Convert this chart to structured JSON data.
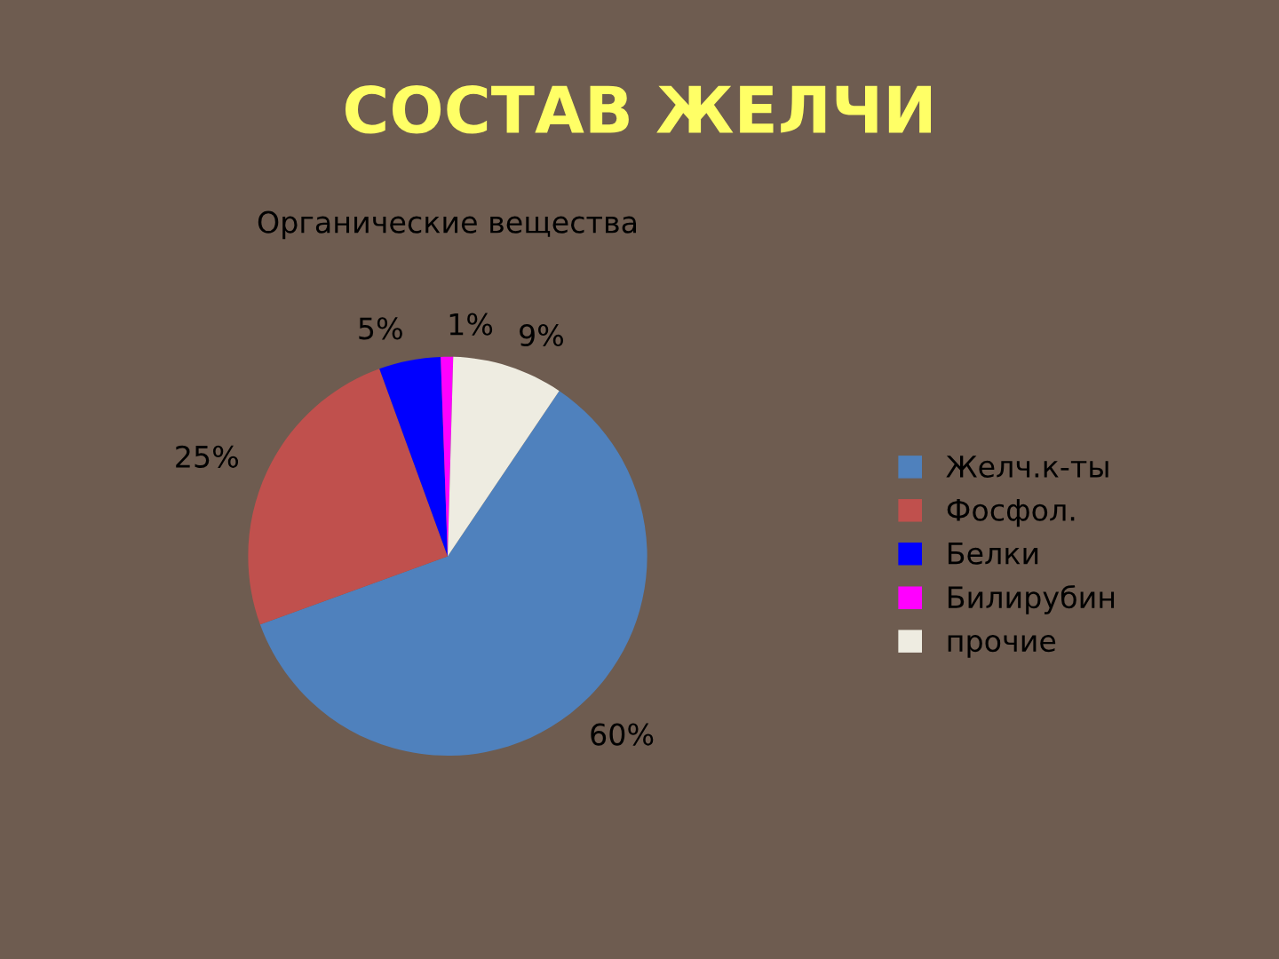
{
  "chart_data": {
    "type": "pie",
    "title": "СОСТАВ ЖЕЛЧИ",
    "subtitle": "Органические вещества",
    "categories": [
      "Желч.к-ты",
      "Фосфол.",
      "Белки",
      "Билирубин",
      "прочие"
    ],
    "values": [
      60,
      25,
      5,
      1,
      9
    ],
    "colors": [
      "#4f81bd",
      "#c0504d",
      "#0000ff",
      "#ff00ff",
      "#eeece1"
    ],
    "value_labels": [
      "60%",
      "25%",
      "5%",
      "1%",
      "9%"
    ],
    "legend": "right"
  }
}
